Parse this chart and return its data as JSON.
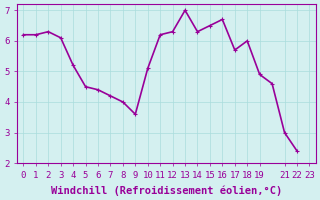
{
  "x": [
    0,
    1,
    2,
    3,
    4,
    5,
    6,
    7,
    8,
    9,
    10,
    11,
    12,
    13,
    14,
    15,
    16,
    17,
    18,
    19,
    20,
    21,
    22,
    23
  ],
  "y": [
    6.2,
    6.2,
    6.3,
    6.1,
    5.2,
    4.5,
    4.4,
    4.2,
    4.0,
    3.6,
    5.1,
    6.2,
    6.3,
    7.0,
    6.3,
    6.5,
    6.7,
    5.7,
    6.0,
    4.9,
    4.6,
    3.0,
    2.4,
    null
  ],
  "line_color": "#990099",
  "marker_color": "#990099",
  "bg_color": "#d4f0f0",
  "grid_color": "#aadddd",
  "xlabel": "Windchill (Refroidissement éolien,°C)",
  "xlim": [
    -0.5,
    23.5
  ],
  "ylim": [
    2,
    7.2
  ],
  "yticks": [
    2,
    3,
    4,
    5,
    6,
    7
  ],
  "xticks": [
    0,
    1,
    2,
    3,
    4,
    5,
    6,
    7,
    8,
    9,
    10,
    11,
    12,
    13,
    14,
    15,
    16,
    17,
    18,
    19,
    21,
    22,
    23
  ],
  "tick_fontsize": 6.5,
  "label_fontsize": 7.5,
  "label_color": "#990099",
  "axis_color": "#990099",
  "linewidth": 1.2,
  "markersize": 2.5
}
